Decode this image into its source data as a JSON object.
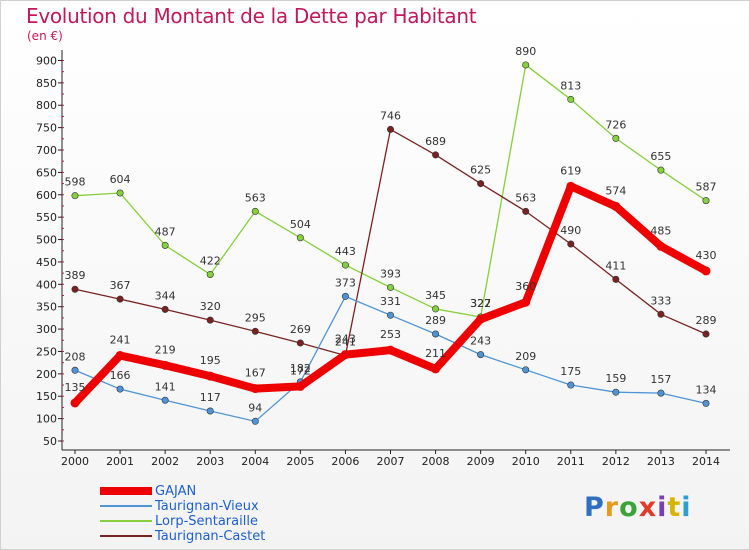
{
  "header": {
    "title": "Evolution du Montant de la Dette par Habitant",
    "unit": "(en €)"
  },
  "logo": {
    "letters": [
      {
        "char": "P",
        "color": "#2e6fc0"
      },
      {
        "char": "r",
        "color": "#e89a1c"
      },
      {
        "char": "o",
        "color": "#3aa33a"
      },
      {
        "char": "x",
        "color": "#e33b2a"
      },
      {
        "char": "i",
        "color": "#7b3fb5"
      },
      {
        "char": "t",
        "color": "#d8b400"
      },
      {
        "char": "i",
        "color": "#2e9fd0"
      }
    ]
  },
  "chart_data": {
    "type": "line",
    "title": "Evolution du Montant de la Dette par Habitant",
    "subtitle": "(en €)",
    "x": [
      "2000",
      "2001",
      "2002",
      "2003",
      "2004",
      "2005",
      "2006",
      "2007",
      "2008",
      "2009",
      "2010",
      "2011",
      "2012",
      "2013",
      "2014"
    ],
    "yticks": [
      50,
      100,
      150,
      200,
      250,
      300,
      350,
      400,
      450,
      500,
      550,
      600,
      650,
      700,
      750,
      800,
      850,
      900
    ],
    "ylim": [
      50,
      910
    ],
    "grid": false,
    "legend_position": "bottom-left",
    "series": [
      {
        "name": "GAJAN",
        "color": "#ee0000",
        "values": [
          135,
          241,
          219,
          195,
          167,
          172,
          243,
          253,
          211,
          322,
          360,
          619,
          574,
          485,
          430
        ]
      },
      {
        "name": "Taurignan-Vieux",
        "color": "#4f94d6",
        "values": [
          208,
          166,
          141,
          117,
          94,
          182,
          373,
          331,
          289,
          243,
          209,
          175,
          159,
          157,
          134
        ]
      },
      {
        "name": "Lorp-Sentaraille",
        "color": "#86cf3d",
        "values": [
          598,
          604,
          487,
          422,
          563,
          504,
          443,
          393,
          345,
          327,
          890,
          813,
          726,
          655,
          587
        ]
      },
      {
        "name": "Taurignan-Castet",
        "color": "#7a2222",
        "values": [
          389,
          367,
          344,
          320,
          295,
          269,
          241,
          746,
          689,
          625,
          563,
          490,
          411,
          333,
          289
        ]
      }
    ]
  }
}
